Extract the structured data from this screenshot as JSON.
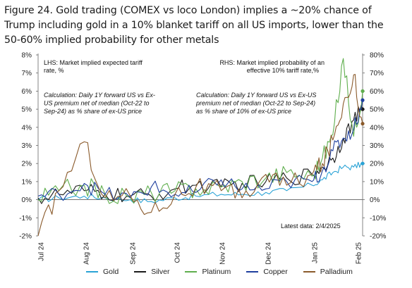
{
  "title_line1": "Figure 24. Gold trading (COMEX vs loco London) implies a ~20% chance of",
  "title_line2": "Trump including gold in a 10% blanket tariff on all US imports, lower than the",
  "title_line3": "50-60% implied probability for other metals",
  "chart_data": {
    "type": "line",
    "title": "Figure 24. Gold trading (COMEX vs loco London) implies a ~20% chance of Trump including gold in a 10% blanket tariff on all US imports, lower than the 50-60% implied probability for other metals",
    "x_tick_labels": [
      "Jul 24",
      "Aug 24",
      "Sep 24",
      "Oct 24",
      "Nov 24",
      "Dec 24",
      "Jan 25",
      "Feb 25"
    ],
    "left_axis": {
      "ylim": [
        -2,
        8
      ],
      "ticks": [
        "-2%",
        "-1%",
        "0%",
        "1%",
        "2%",
        "3%",
        "4%",
        "5%",
        "6%",
        "7%",
        "8%"
      ],
      "label_lines": [
        "LHS: Market implied expected tariff",
        "rate, %"
      ]
    },
    "right_axis": {
      "ylim": [
        -20,
        80
      ],
      "ticks": [
        "-20%",
        "-10%",
        "0%",
        "10%",
        "20%",
        "30%",
        "40%",
        "50%",
        "60%",
        "70%",
        "80%"
      ],
      "label_lines": [
        "RHS: Market implied  probability of an",
        "effective 10% tariff rate,%"
      ]
    },
    "annotation_left": [
      "Calculation: Daily 1Y forward US vs Ex-",
      "US premium net of median (Oct-22 to",
      "Sep-24) as % share of ex-US price"
    ],
    "annotation_right": [
      "Calculation: Daily 1Y forward US vs Ex-US",
      "premium net of median (Oct-22 to Sep-24)",
      "as % share of  10% of ex-US price"
    ],
    "latest_data": "Latest data:  2/4/2025",
    "grid": false,
    "legend_position": "bottom",
    "x_dates": [
      "2024-07-01",
      "2024-07-15",
      "2024-08-01",
      "2024-08-15",
      "2024-09-01",
      "2024-09-15",
      "2024-10-01",
      "2024-10-15",
      "2024-11-01",
      "2024-11-15",
      "2024-12-01",
      "2024-12-15",
      "2025-01-01",
      "2025-01-08",
      "2025-01-15",
      "2025-01-22",
      "2025-01-29",
      "2025-02-04"
    ],
    "series": [
      {
        "name": "Gold",
        "color": "#2aa3d6",
        "values": [
          0.0,
          0.1,
          0.2,
          0.1,
          0.0,
          -0.1,
          0.1,
          0.2,
          0.3,
          0.3,
          0.4,
          0.5,
          0.8,
          1.1,
          1.5,
          1.8,
          1.8,
          2.0
        ]
      },
      {
        "name": "Silver",
        "color": "#1b1b1b",
        "values": [
          0.1,
          0.3,
          0.5,
          0.3,
          0.2,
          0.2,
          0.6,
          0.8,
          0.7,
          0.9,
          1.0,
          1.2,
          1.4,
          1.8,
          2.3,
          3.4,
          4.4,
          5.0
        ]
      },
      {
        "name": "Platinum",
        "color": "#5fae4d",
        "values": [
          0.0,
          0.5,
          0.8,
          0.3,
          0.1,
          0.4,
          0.5,
          0.6,
          0.7,
          1.0,
          1.2,
          1.5,
          1.3,
          2.3,
          3.6,
          7.8,
          3.5,
          6.0
        ]
      },
      {
        "name": "Copper",
        "color": "#1f3f9e",
        "values": [
          0.2,
          0.3,
          0.9,
          0.3,
          0.1,
          0.7,
          0.3,
          0.4,
          1.1,
          0.6,
          0.6,
          1.0,
          1.0,
          1.6,
          2.7,
          3.4,
          3.9,
          5.5
        ]
      },
      {
        "name": "Palladium",
        "color": "#8a5a2b",
        "values": [
          -2.0,
          0.5,
          3.2,
          0.1,
          0.2,
          -0.7,
          0.3,
          0.7,
          0.5,
          0.1,
          1.4,
          0.8,
          1.4,
          2.0,
          3.3,
          5.3,
          6.9,
          4.2
        ]
      }
    ]
  }
}
